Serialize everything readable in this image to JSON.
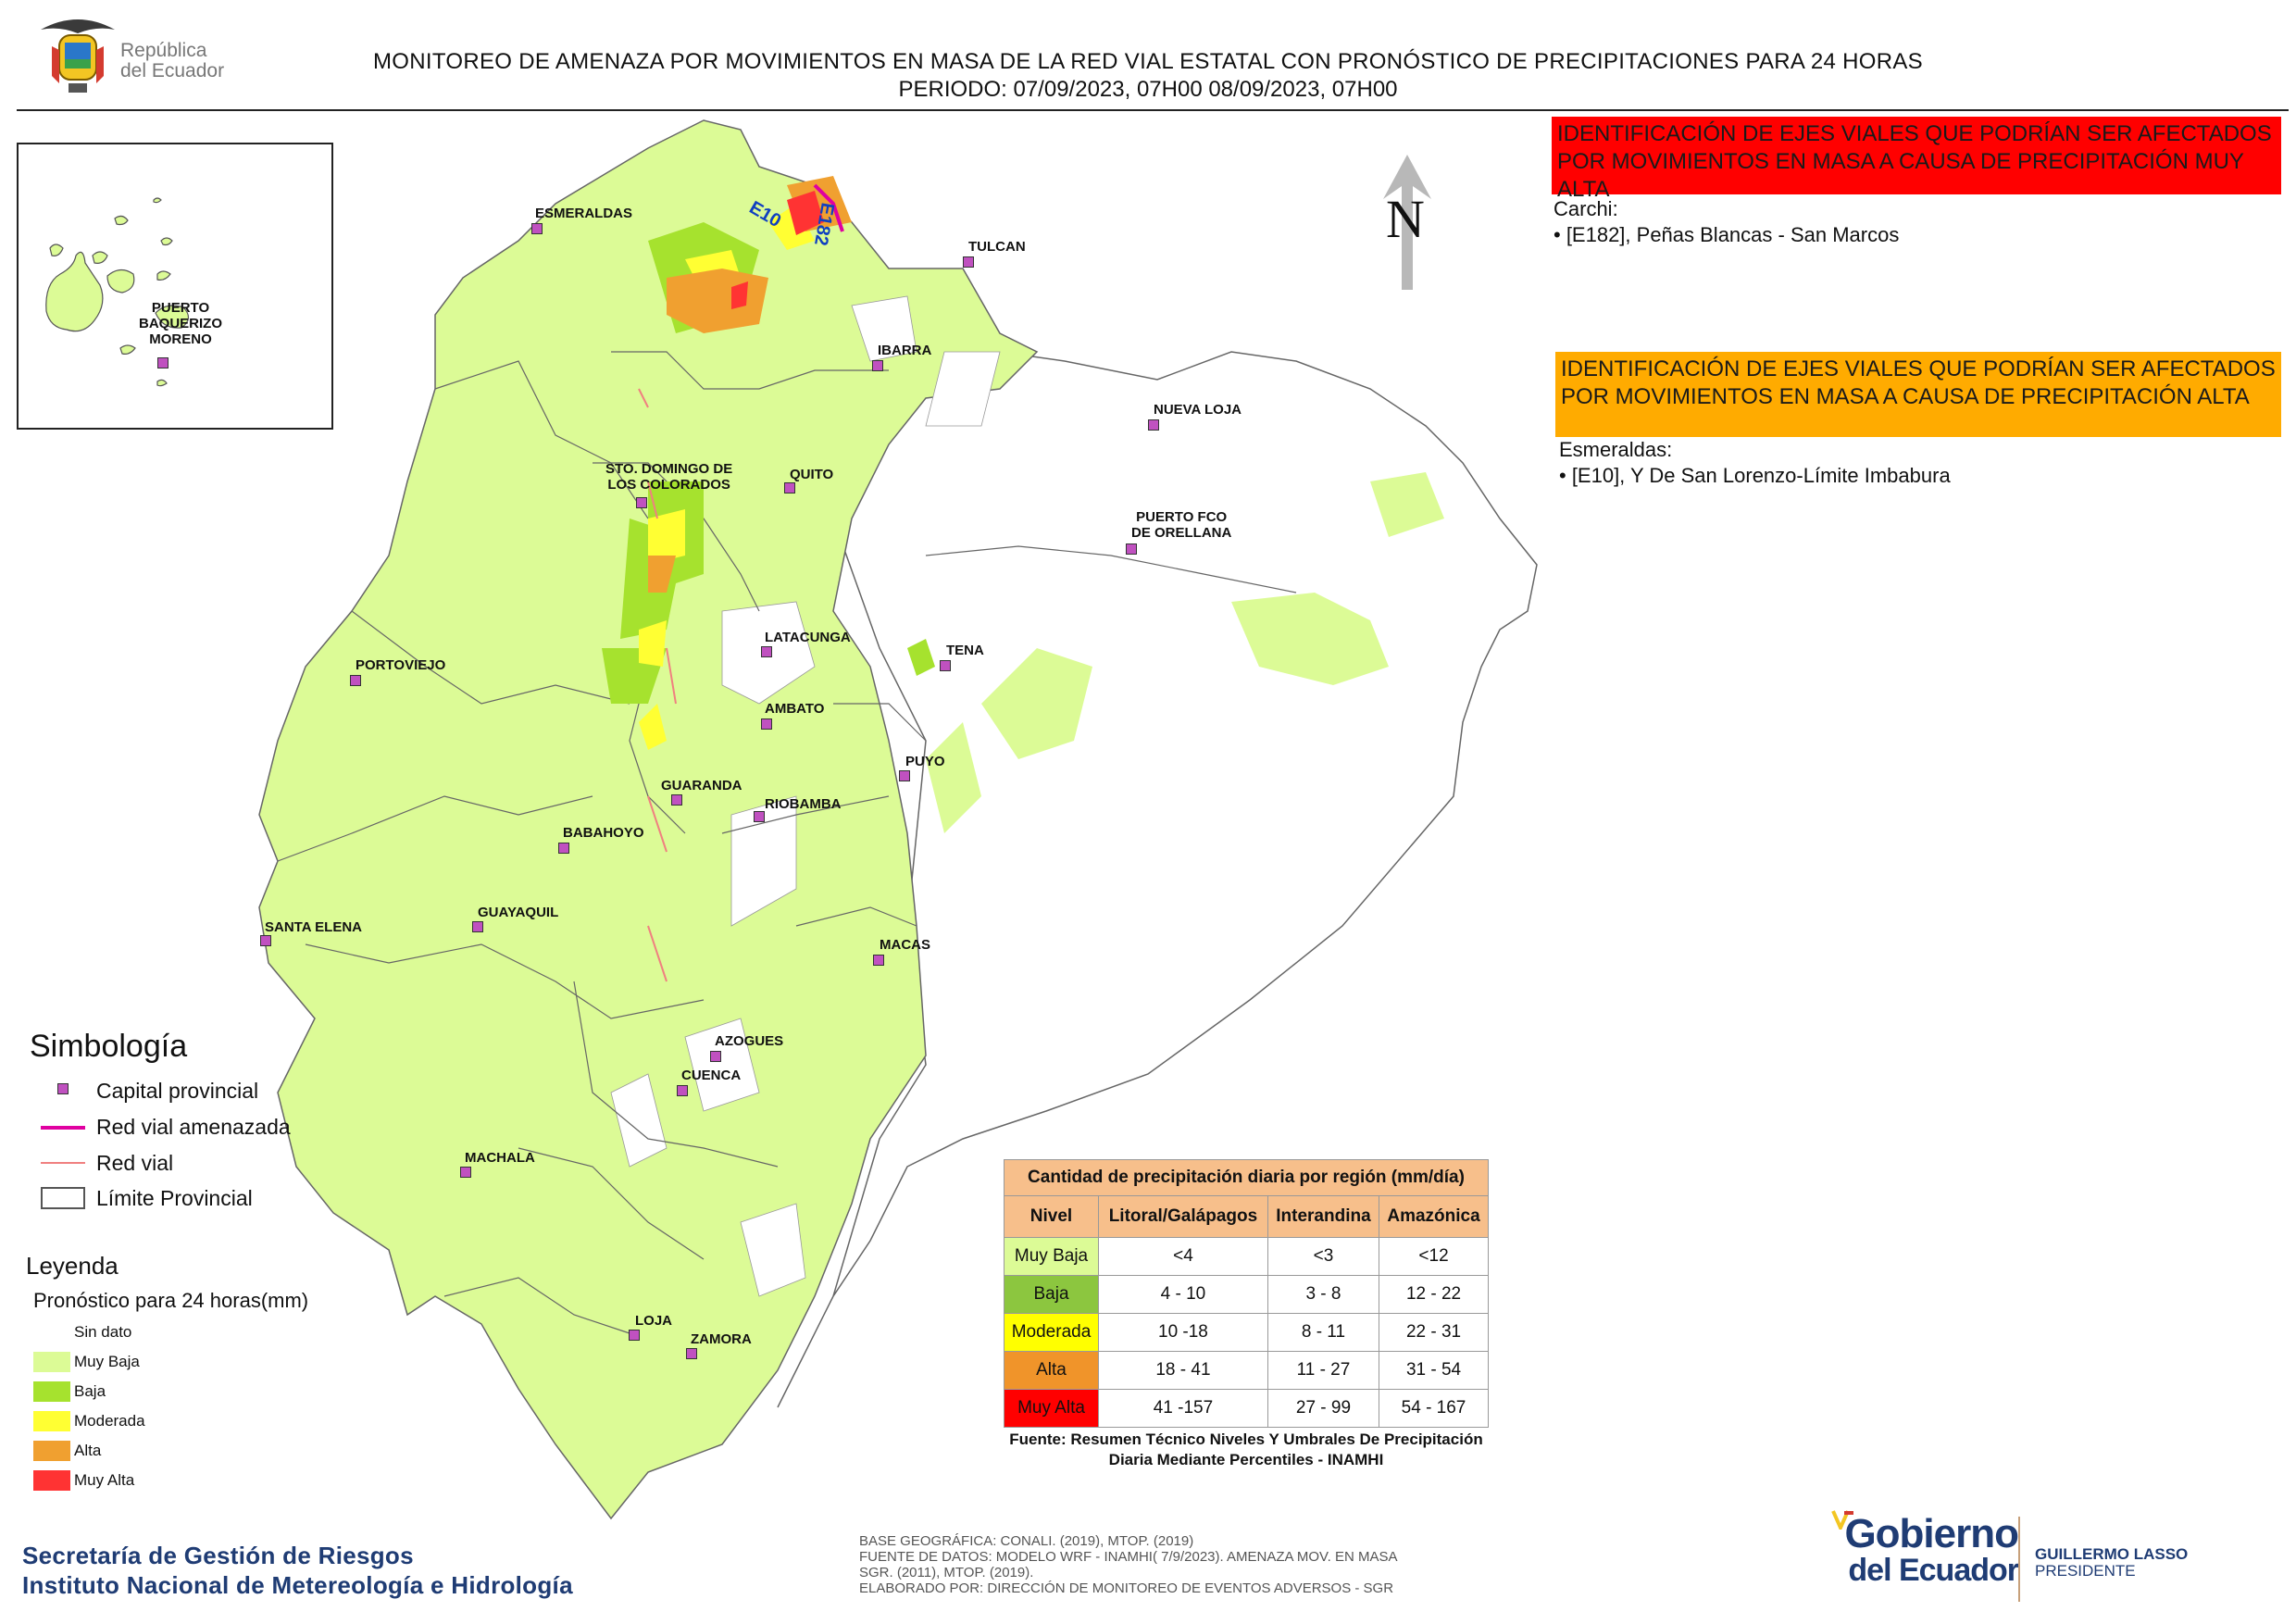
{
  "header": {
    "title": "MONITOREO DE AMENAZA POR MOVIMIENTOS EN MASA DE LA RED VIAL  ESTATAL  CON PRONÓSTICO  DE  PRECIPITACIONES PARA 24 HORAS",
    "period": "PERIODO: 07/09/2023, 07H00 08/09/2023, 07H00",
    "logo_text_1": "República",
    "logo_text_2": "del Ecuador"
  },
  "map": {
    "inset_city": "PUERTO\nBAQUERIZO\nMORENO",
    "cities": [
      {
        "name": "ESMERALDAS"
      },
      {
        "name": "TULCAN"
      },
      {
        "name": "IBARRA"
      },
      {
        "name": "NUEVA LOJA"
      },
      {
        "name": "STO. DOMINGO DE\nLOS COLORADOS"
      },
      {
        "name": "QUITO"
      },
      {
        "name": "PUERTO FCO\nDE ORELLANA"
      },
      {
        "name": "LATACUNGA"
      },
      {
        "name": "TENA"
      },
      {
        "name": "PORTOVIEJO"
      },
      {
        "name": "AMBATO"
      },
      {
        "name": "PUYO"
      },
      {
        "name": "GUARANDA"
      },
      {
        "name": "RIOBAMBA"
      },
      {
        "name": "BABAHOYO"
      },
      {
        "name": "SANTA ELENA"
      },
      {
        "name": "GUAYAQUIL"
      },
      {
        "name": "MACAS"
      },
      {
        "name": "AZOGUES"
      },
      {
        "name": "CUENCA"
      },
      {
        "name": "MACHALA"
      },
      {
        "name": "LOJA"
      },
      {
        "name": "ZAMORA"
      }
    ],
    "road_labels": [
      "E10",
      "E182"
    ],
    "north": "N",
    "colors": {
      "sin_dato": "#ffffff",
      "muy_baja": "#dcfb96",
      "baja": "#a6e22e",
      "moderada": "#ffff33",
      "alta": "#f0a030",
      "muy_alta": "#ff3333",
      "road_threat": "#e000a0",
      "road": "#f08080",
      "boundary": "#555555"
    }
  },
  "alerts": {
    "muy_alta": {
      "heading": "IDENTIFICACIÓN DE EJES VIALES QUE PODRÍAN SER AFECTADOS POR MOVIMIENTOS EN MASA A CAUSA DE PRECIPITACIÓN MUY ALTA",
      "province": "Carchi:",
      "items": [
        "• [E182], Peñas Blancas - San Marcos"
      ]
    },
    "alta": {
      "heading": "IDENTIFICACIÓN DE EJES VIALES QUE PODRÍAN SER AFECTADOS POR MOVIMIENTOS EN MASA A CAUSA DE PRECIPITACIÓN  ALTA",
      "province": "Esmeraldas:",
      "items": [
        "• [E10], Y De San Lorenzo-Límite Imbabura"
      ]
    }
  },
  "simbologia": {
    "title": "Simbología",
    "items": [
      "Capital provincial",
      "Red vial amenazada",
      "Red vial",
      "Límite Provincial"
    ]
  },
  "leyenda": {
    "title": "Leyenda",
    "subtitle": "Pronóstico para 24 horas(mm)",
    "items": [
      "Sin dato",
      "Muy Baja",
      "Baja",
      "Moderada",
      "Alta",
      "Muy Alta"
    ]
  },
  "table": {
    "title": "Cantidad de precipitación diaria por región (mm/día)",
    "headers": [
      "Nivel",
      "Litoral/Galápagos",
      "Interandina",
      "Amazónica"
    ],
    "rows": [
      [
        "Muy Baja",
        "<4",
        "<3",
        "<12"
      ],
      [
        "Baja",
        "4 - 10",
        "3 - 8",
        "12 - 22"
      ],
      [
        "Moderada",
        "10 -18",
        "8 - 11",
        "22 - 31"
      ],
      [
        "Alta",
        "18 - 41",
        "11 - 27",
        "31 - 54"
      ],
      [
        "Muy Alta",
        "41 -157",
        "27 - 99",
        "54 - 167"
      ]
    ],
    "source": "Fuente: Resumen Técnico Niveles Y Umbrales De Precipitación Diaria Mediante Percentiles - INAMHI"
  },
  "footer": {
    "left_1": "Secretaría de Gestión de Riesgos",
    "left_2": "Instituto Nacional de Metereología e Hidrología",
    "mid_1": "BASE GEOGRÁFICA: CONALI. (2019), MTOP. (2019)",
    "mid_2": "FUENTE DE DATOS: MODELO WRF - INAMHI( 7/9/2023).  AMENAZA MOV. EN MASA",
    "mid_3": "SGR. (2011), MTOP. (2019).",
    "mid_4": "ELABORADO POR: DIRECCIÓN DE MONITOREO DE EVENTOS ADVERSOS - SGR",
    "gob_1": "Gobierno",
    "gob_2": "del Ecuador",
    "president_1": "GUILLERMO LASSO",
    "president_2": "PRESIDENTE"
  }
}
